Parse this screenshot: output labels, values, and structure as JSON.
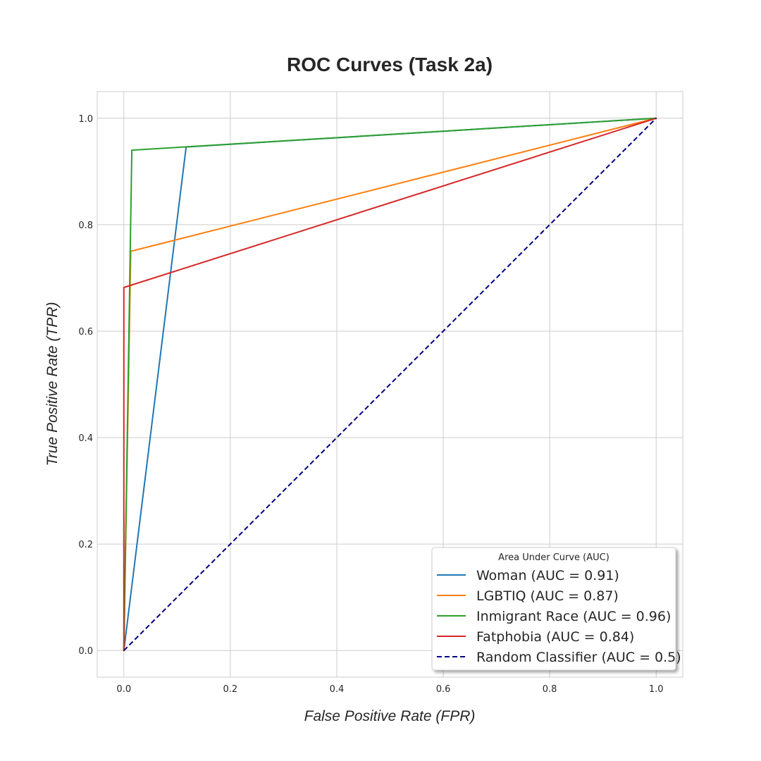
{
  "chart_data": {
    "type": "line",
    "title": "ROC Curves (Task 2a)",
    "xlabel": "False Positive Rate (FPR)",
    "ylabel": "True Positive Rate (TPR)",
    "xlim": [
      -0.05,
      1.05
    ],
    "ylim": [
      -0.05,
      1.05
    ],
    "x_ticks": [
      0.0,
      0.2,
      0.4,
      0.6,
      0.8,
      1.0
    ],
    "y_ticks": [
      0.0,
      0.2,
      0.4,
      0.6,
      0.8,
      1.0
    ],
    "x_tick_labels": [
      "0.0",
      "0.2",
      "0.4",
      "0.6",
      "0.8",
      "1.0"
    ],
    "y_tick_labels": [
      "0.0",
      "0.2",
      "0.4",
      "0.6",
      "0.8",
      "1.0"
    ],
    "grid": true,
    "legend": {
      "title": "Area Under Curve (AUC)",
      "placement": "lower-right"
    },
    "series": [
      {
        "name": "Woman (AUC = 0.91)",
        "color": "#1f77b4",
        "dash": "solid",
        "x": [
          0.0,
          0.117,
          1.0
        ],
        "y": [
          0.0,
          0.946,
          1.0
        ]
      },
      {
        "name": "LGBTIQ (AUC = 0.87)",
        "color": "#ff7f0e",
        "dash": "solid",
        "x": [
          0.0,
          0.013,
          1.0
        ],
        "y": [
          0.0,
          0.75,
          1.0
        ]
      },
      {
        "name": "Inmigrant Race (AUC = 0.96)",
        "color": "#2ca02c",
        "dash": "solid",
        "x": [
          0.0,
          0.015,
          1.0
        ],
        "y": [
          0.0,
          0.94,
          1.0
        ]
      },
      {
        "name": "Fatphobia (AUC = 0.84)",
        "color": "#d62728",
        "dash": "solid",
        "x": [
          0.0,
          0.0,
          1.0
        ],
        "y": [
          0.0,
          0.682,
          1.0
        ]
      },
      {
        "name": "Random Classifier (AUC = 0.5)",
        "color": "#000080",
        "dash": "dashed",
        "x": [
          0.0,
          1.0
        ],
        "y": [
          0.0,
          1.0
        ]
      }
    ]
  }
}
